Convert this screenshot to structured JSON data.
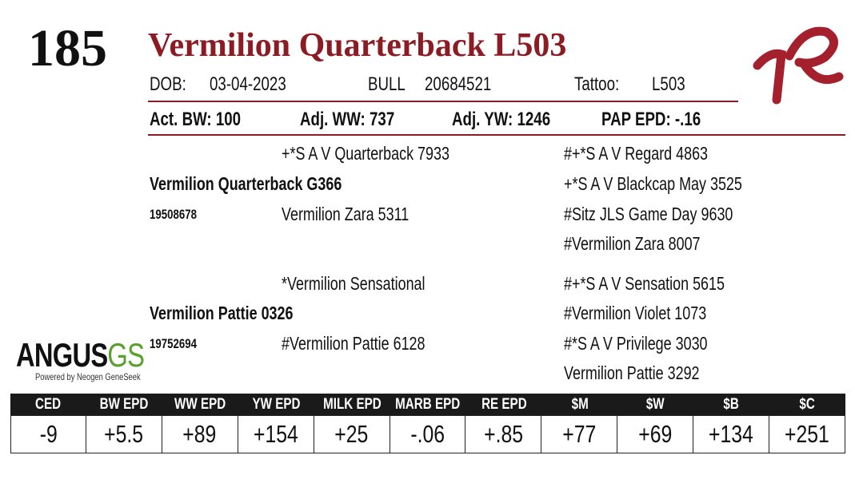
{
  "lot": "185",
  "name": "Vermilion Quarterback L503",
  "info": {
    "dob_label": "DOB:",
    "dob": "03-04-2023",
    "sex": "BULL",
    "registration": "20684521",
    "tattoo_label": "Tattoo:",
    "tattoo": "L503"
  },
  "performance": [
    {
      "label": "Act. BW:",
      "value": "100"
    },
    {
      "label": "Adj. WW:",
      "value": "737"
    },
    {
      "label": "Adj. YW:",
      "value": "1246"
    },
    {
      "label": "PAP EPD:",
      "value": "-.16"
    }
  ],
  "pedigree": {
    "sire": {
      "name": "Vermilion Quarterback G366",
      "registration": "19508678",
      "sire": "+*S A V Quarterback 7933",
      "dam": "Vermilion Zara 5311",
      "ancestors": [
        "#+*S A V Regard 4863",
        "+*S A V Blackcap May 3525",
        "#Sitz JLS Game Day 9630",
        "#Vermilion Zara 8007"
      ]
    },
    "dam": {
      "name": "Vermilion Pattie 0326",
      "registration": "19752694",
      "sire": "*Vermilion Sensational",
      "dam": "#Vermilion Pattie 6128",
      "ancestors": [
        "#+*S A V Sensation 5615",
        "#Vermilion Violet 1073",
        "#*S A V Privilege 3030",
        "Vermilion Pattie 3292"
      ]
    }
  },
  "logo": {
    "angus": "ANGUS",
    "gs": "GS",
    "tagline": "Powered by Neogen GeneSeek"
  },
  "epds": {
    "headers": [
      "CED",
      "BW EPD",
      "WW EPD",
      "YW EPD",
      "MILK EPD",
      "MARB EPD",
      "RE EPD",
      "$M",
      "$W",
      "$B",
      "$C"
    ],
    "values": [
      "-9",
      "+5.5",
      "+89",
      "+154",
      "+25",
      "-.06",
      "+.85",
      "+77",
      "+69",
      "+134",
      "+251"
    ]
  }
}
